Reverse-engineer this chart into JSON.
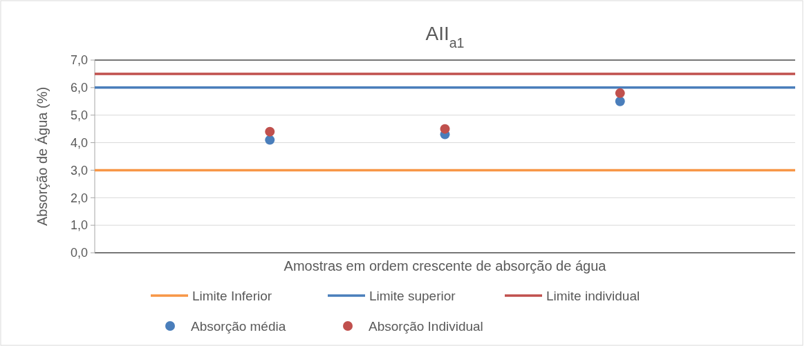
{
  "chart_data": {
    "type": "scatter",
    "title": "AII$_{a1}$",
    "xlabel": "Amostras em ordem crescente de absorção de água",
    "ylabel": "Absorção de Água (%)",
    "categories": [
      null,
      null,
      null
    ],
    "series": [
      {
        "name": "Absorção média",
        "color": "#4a7ebb",
        "values": [
          4.1,
          4.3,
          5.5
        ]
      },
      {
        "name": "Absorção Individual",
        "color": "#c0504d",
        "values": [
          4.4,
          4.5,
          5.8
        ]
      }
    ],
    "ref_lines": [
      {
        "axis": "y",
        "value": 3.0,
        "label": "Limite Inferior",
        "color": "#f79646"
      },
      {
        "axis": "y",
        "value": 6.0,
        "label": "Limite superior",
        "color": "#4a7ebb"
      },
      {
        "axis": "y",
        "value": 6.5,
        "label": "Limite individual",
        "color": "#c0504d"
      }
    ],
    "ylim": [
      0,
      7
    ],
    "yticks": [
      {
        "value": 0,
        "label": "0,0"
      },
      {
        "value": 1,
        "label": "1,0"
      },
      {
        "value": 2,
        "label": "2,0"
      },
      {
        "value": 3,
        "label": "3,0"
      },
      {
        "value": 4,
        "label": "4,0"
      },
      {
        "value": 5,
        "label": "5,0"
      },
      {
        "value": 6,
        "label": "6,0"
      },
      {
        "value": 7,
        "label": "7,0"
      }
    ],
    "grid": "y",
    "legend": "bottom",
    "marker": "circle"
  }
}
